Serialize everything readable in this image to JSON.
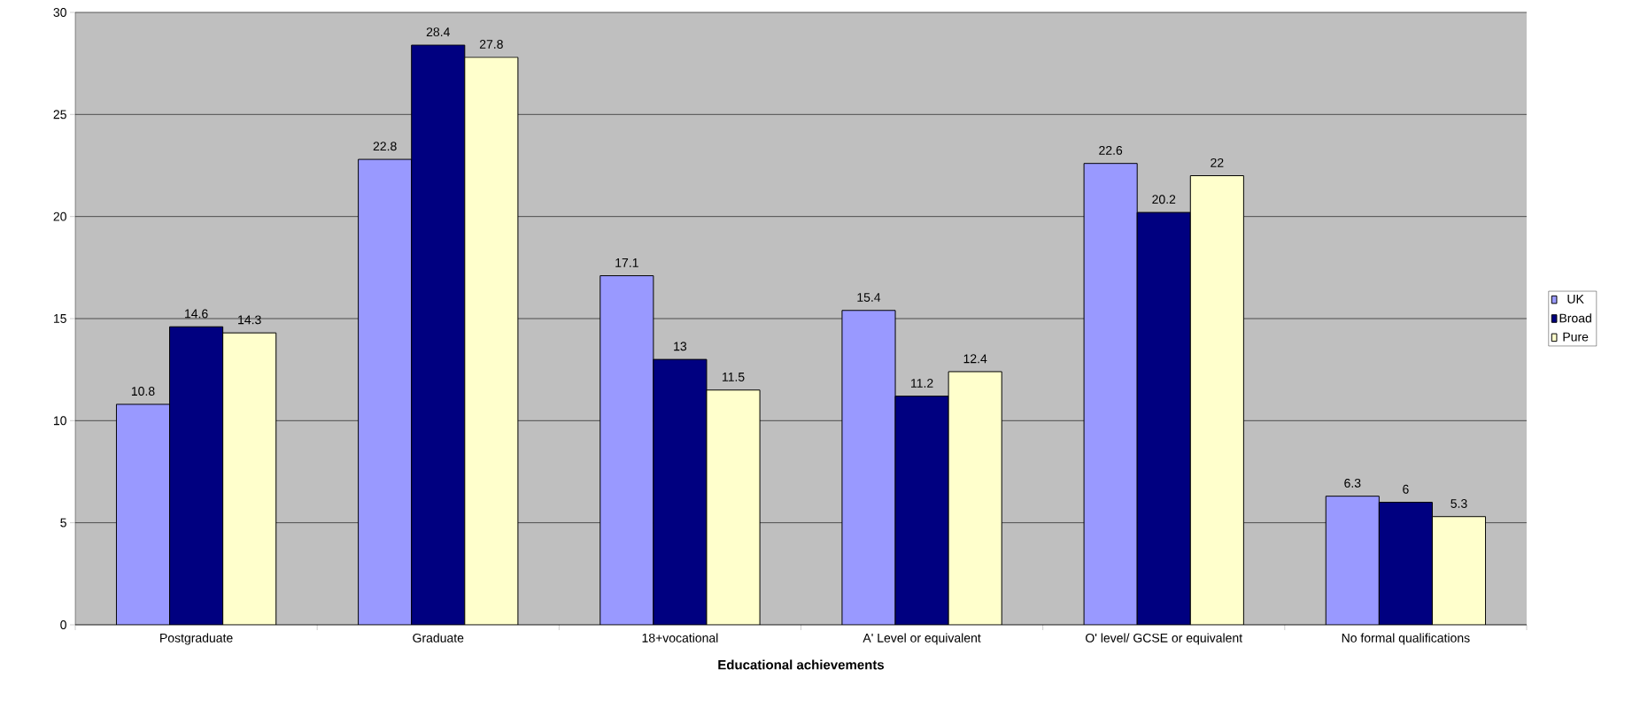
{
  "chart_data": {
    "type": "bar",
    "xlabel": "Educational achievements",
    "categories": [
      "Postgraduate",
      "Graduate",
      "18+vocational",
      "A' Level or equivalent",
      "O' level/ GCSE or equivalent",
      "No formal qualifications"
    ],
    "series": [
      {
        "name": "UK",
        "color": "#9999ff",
        "values": [
          10.8,
          22.8,
          17.1,
          15.4,
          22.6,
          6.3
        ]
      },
      {
        "name": "Broad",
        "color": "#000080",
        "values": [
          14.6,
          28.4,
          13,
          11.2,
          20.2,
          6
        ]
      },
      {
        "name": "Pure",
        "color": "#ffffcc",
        "values": [
          14.3,
          27.8,
          11.5,
          12.4,
          22,
          5.3
        ]
      }
    ],
    "ylim": [
      0,
      30
    ],
    "yticks": [
      0,
      5,
      10,
      15,
      20,
      25,
      30
    ],
    "grid": "y",
    "legend": "right",
    "data_labels": true
  }
}
